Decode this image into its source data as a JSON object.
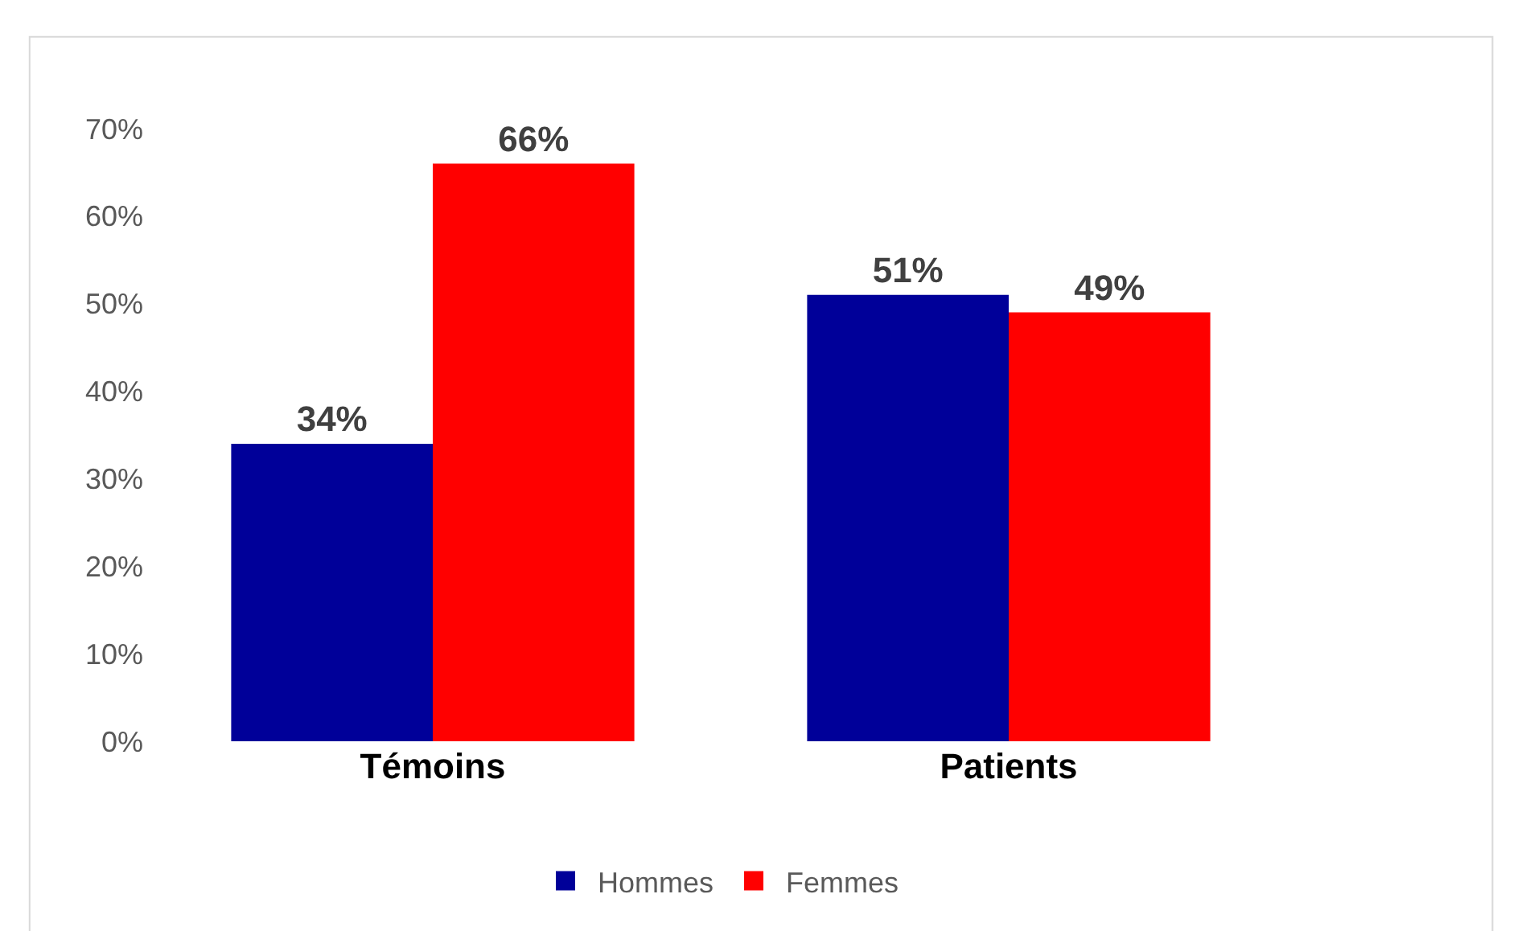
{
  "chart_data": {
    "type": "bar",
    "categories": [
      "Témoins",
      "Patients"
    ],
    "series": [
      {
        "name": "Hommes",
        "color": "#000099",
        "values": [
          34,
          51
        ],
        "value_labels": [
          "34%",
          "51%"
        ]
      },
      {
        "name": "Femmes",
        "color": "#ff0000",
        "values": [
          66,
          49
        ],
        "value_labels": [
          "66%",
          "49%"
        ]
      }
    ],
    "ylim": [
      0,
      70
    ],
    "yticks": [
      {
        "value": 0,
        "label": "0%"
      },
      {
        "value": 10,
        "label": "10%"
      },
      {
        "value": 20,
        "label": "20%"
      },
      {
        "value": 30,
        "label": "30%"
      },
      {
        "value": 40,
        "label": "40%"
      },
      {
        "value": 50,
        "label": "50%"
      },
      {
        "value": 60,
        "label": "60%"
      },
      {
        "value": 70,
        "label": "70%"
      }
    ],
    "legend": "bottom"
  }
}
